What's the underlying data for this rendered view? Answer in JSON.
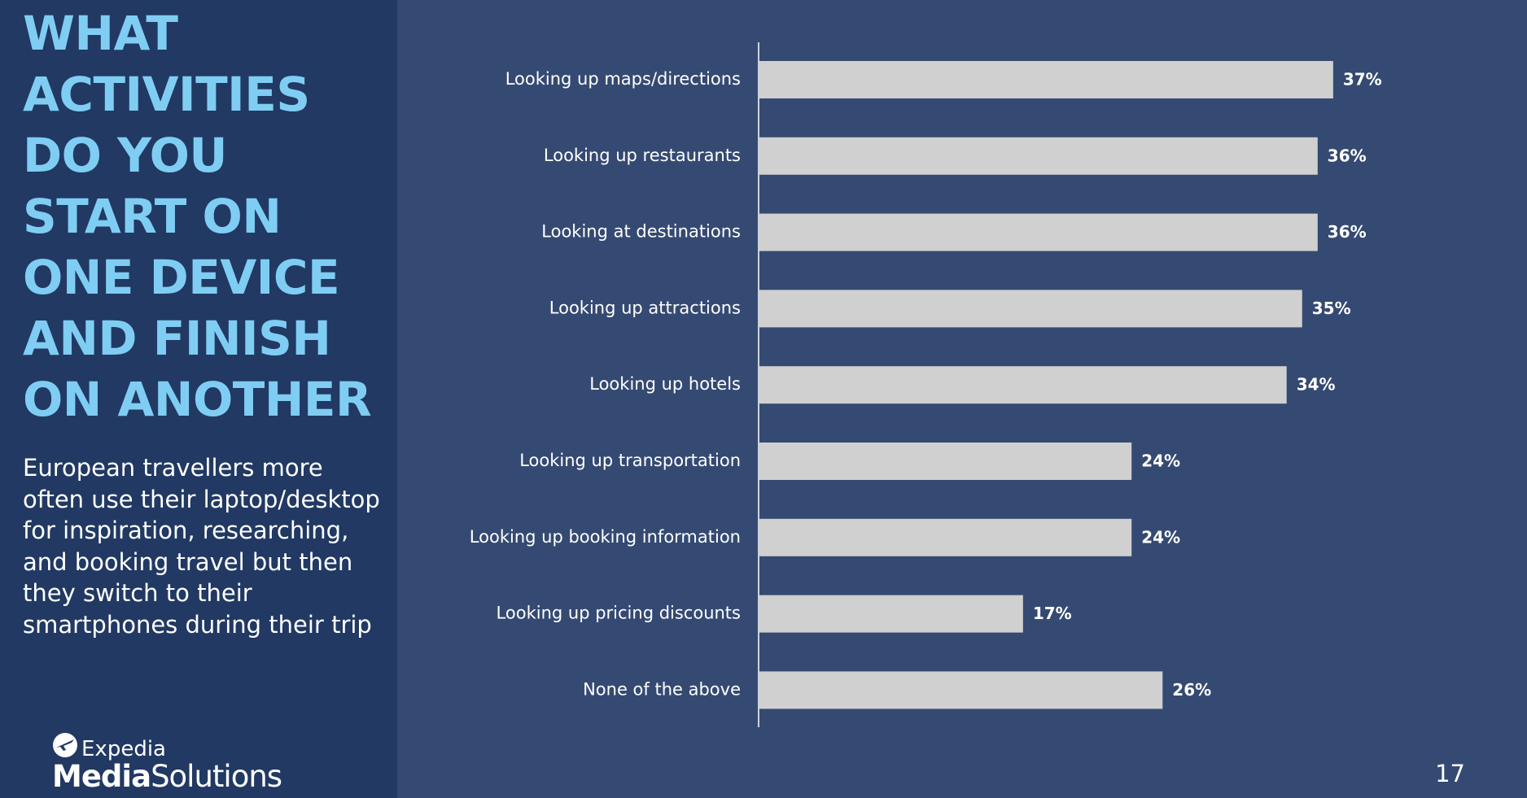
{
  "slide": {
    "headline": "WHAT ACTIVITIES DO YOU START ON ONE DEVICE AND FINISH ON ANOTHER",
    "subtext": "European travellers more often use their laptop/desktop for inspiration, researching, and booking travel but then they switch to their smartphones during their trip",
    "page_number": "17"
  },
  "logo": {
    "brand": "Expedia",
    "product_bold": "Media",
    "product_light": "Solutions",
    "icon": "expedia-plane-globe-icon"
  },
  "colors": {
    "background": "#354a72",
    "left_panel": "#213963",
    "headline": "#7fcdf2",
    "bar": "#d0d0d0",
    "text": "#ffffff"
  },
  "chart_data": {
    "type": "bar",
    "orientation": "horizontal",
    "categories": [
      "Looking up maps/directions",
      "Looking up restaurants",
      "Looking at destinations",
      "Looking up attractions",
      "Looking up hotels",
      "Looking up transportation",
      "Looking up booking information",
      "Looking up pricing discounts",
      "None of the above"
    ],
    "values": [
      37,
      36,
      36,
      35,
      34,
      24,
      24,
      17,
      26
    ],
    "value_labels": [
      "37%",
      "36%",
      "36%",
      "35%",
      "34%",
      "24%",
      "24%",
      "17%",
      "26%"
    ],
    "xlim": [
      0,
      40
    ],
    "grid": false,
    "legend": "none"
  }
}
